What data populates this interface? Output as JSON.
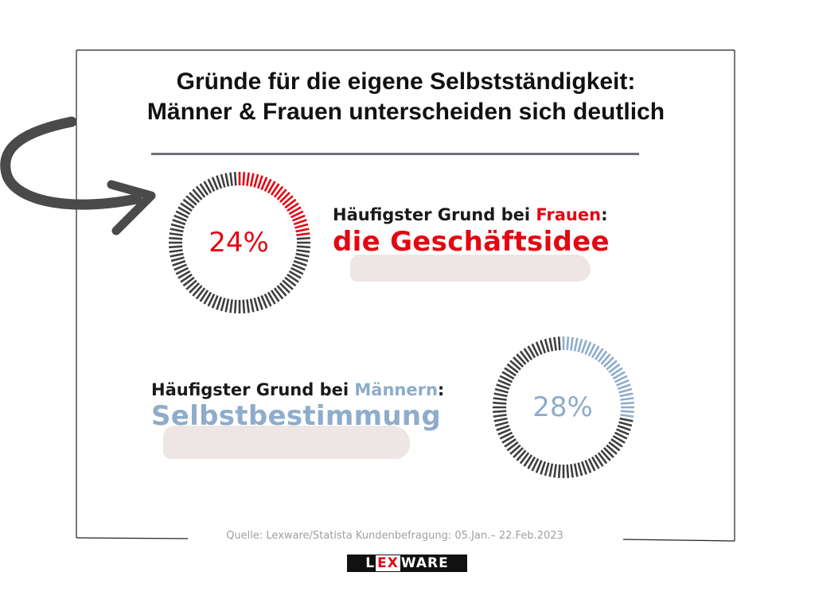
{
  "title_line1": "Gründe für die eigene Selbstständigkeit:",
  "title_line2": "Männer & Frauen unterscheiden sich deutlich",
  "colors": {
    "women": "#e30613",
    "men": "#8eaccb",
    "ring_base": "#3d3d3d",
    "brush": "#eee6e4"
  },
  "women": {
    "prefix": "Häufigster Grund bei ",
    "group": "Frauen",
    "suffix": ":",
    "reason": "die Geschäftsidee",
    "percent_label": "24%"
  },
  "men": {
    "prefix": "Häufigster Grund bei ",
    "group": "Männern",
    "suffix": ":",
    "reason": "Selbstbestimmung",
    "percent_label": "28%"
  },
  "chart_data": [
    {
      "type": "pie",
      "categories": [
        "Frauen"
      ],
      "values": [
        24
      ],
      "max": 100
    },
    {
      "type": "pie",
      "categories": [
        "Männern"
      ],
      "values": [
        28
      ],
      "max": 100
    }
  ],
  "source": "Quelle: Lexware/Statista Kundenbefragung: 05.Jan.– 22.Feb.2023",
  "logo": {
    "part1": "L",
    "part2": "EX",
    "part3": "WARE"
  }
}
